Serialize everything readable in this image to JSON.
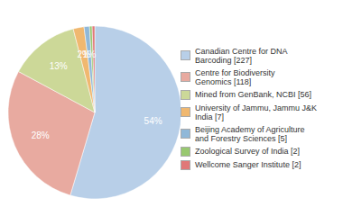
{
  "chart_data": {
    "type": "pie",
    "categories": [
      "Canadian Centre for DNA\nBarcoding [227]",
      "Centre for Biodiversity\nGenomics [118]",
      "Mined from GenBank, NCBI [56]",
      "University of Jammu, Jammu J&K\nIndia [7]",
      "Beijing Academy of Agriculture\nand Forestry Sciences [5]",
      "Zoological Survey of India [2]",
      "Wellcome Sanger Institute [2]"
    ],
    "values": [
      54,
      28,
      13,
      2,
      1,
      0.48,
      0.48
    ],
    "value_labels": [
      "54%",
      "28%",
      "13%",
      "2%",
      "1%",
      null,
      null
    ],
    "colors": [
      "#b8cfe8",
      "#e8aaa0",
      "#ccd898",
      "#f0b870",
      "#90b8d8",
      "#98c870",
      "#e07878"
    ],
    "data_labels": true,
    "legend": "right"
  }
}
